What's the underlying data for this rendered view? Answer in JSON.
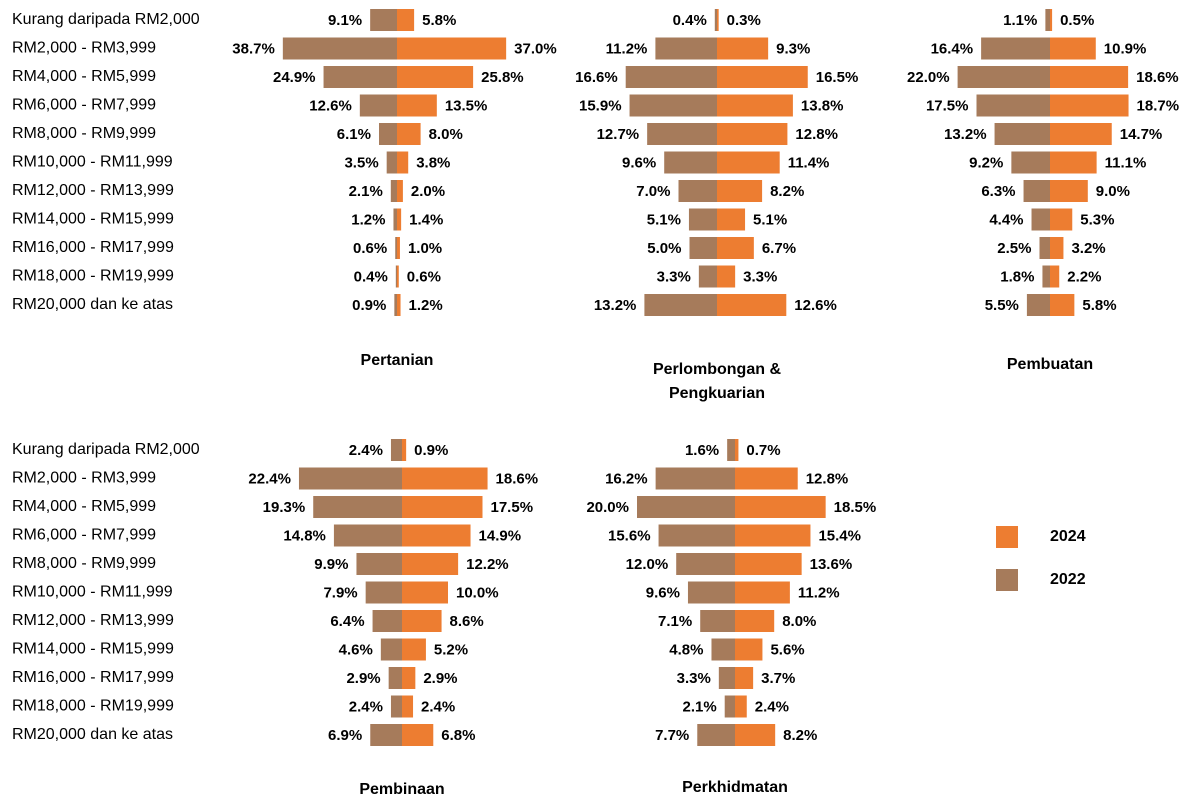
{
  "chart_data": [
    {
      "type": "bar",
      "title": "Pertanian",
      "categories": [
        "Kurang daripada RM2,000",
        "RM2,000 - RM3,999",
        "RM4,000 - RM5,999",
        "RM6,000 - RM7,999",
        "RM8,000 - RM9,999",
        "RM10,000 - RM11,999",
        "RM12,000 - RM13,999",
        "RM14,000 - RM15,999",
        "RM16,000 - RM17,999",
        "RM18,000 - RM19,999",
        "RM20,000 dan ke atas"
      ],
      "xlim": [
        0,
        40
      ],
      "series": [
        {
          "name": "2024",
          "color": "#ED7D31",
          "values": [
            5.8,
            37.0,
            25.8,
            13.5,
            8.0,
            3.8,
            2.0,
            1.4,
            1.0,
            0.6,
            1.2
          ],
          "value_labels": [
            "5.8%",
            "37.0%",
            "25.8%",
            "13.5%",
            "8.0%",
            "3.8%",
            "2.0%",
            "1.4%",
            "1.0%",
            "0.6%",
            "1.2%"
          ]
        },
        {
          "name": "2022",
          "color": "#A67B5B",
          "values": [
            9.1,
            38.7,
            24.9,
            12.6,
            6.1,
            3.5,
            2.1,
            1.2,
            0.6,
            0.4,
            0.9
          ],
          "value_labels": [
            "9.1%",
            "38.7%",
            "24.9%",
            "12.6%",
            "6.1%",
            "3.5%",
            "2.1%",
            "1.2%",
            "0.6%",
            "0.4%",
            "0.9%"
          ]
        }
      ]
    },
    {
      "type": "bar",
      "title": "Perlombongan & Pengkuarian",
      "xlim": [
        0,
        20
      ],
      "series": [
        {
          "color": "#ED7D31",
          "values": [
            0.3,
            9.3,
            16.5,
            13.8,
            12.8,
            11.4,
            8.2,
            5.1,
            6.7,
            3.3,
            12.6
          ],
          "value_labels": [
            "0.3%",
            "9.3%",
            "16.5%",
            "13.8%",
            "12.8%",
            "11.4%",
            "8.2%",
            "5.1%",
            "6.7%",
            "3.3%",
            "12.6%"
          ]
        },
        {
          "color": "#A67B5B",
          "values": [
            0.4,
            11.2,
            16.6,
            15.9,
            12.7,
            9.6,
            7.0,
            5.1,
            5.0,
            3.3,
            13.2
          ],
          "value_labels": [
            "0.4%",
            "11.2%",
            "16.6%",
            "15.9%",
            "12.7%",
            "9.6%",
            "7.0%",
            "5.1%",
            "5.0%",
            "3.3%",
            "13.2%"
          ]
        }
      ]
    },
    {
      "type": "bar",
      "title": "Pembuatan",
      "xlim": [
        0,
        25
      ],
      "series": [
        {
          "color": "#ED7D31",
          "values": [
            0.5,
            10.9,
            18.6,
            18.7,
            14.7,
            11.1,
            9.0,
            5.3,
            3.2,
            2.2,
            5.8
          ],
          "value_labels": [
            "0.5%",
            "10.9%",
            "18.6%",
            "18.7%",
            "14.7%",
            "11.1%",
            "9.0%",
            "5.3%",
            "3.2%",
            "2.2%",
            "5.8%"
          ]
        },
        {
          "color": "#A67B5B",
          "values": [
            1.1,
            16.4,
            22.0,
            17.5,
            13.2,
            9.2,
            6.3,
            4.4,
            2.5,
            1.8,
            5.5
          ],
          "value_labels": [
            "1.1%",
            "16.4%",
            "22.0%",
            "17.5%",
            "13.2%",
            "9.2%",
            "6.3%",
            "4.4%",
            "2.5%",
            "1.8%",
            "5.5%"
          ]
        }
      ]
    },
    {
      "type": "bar",
      "title": "Pembinaan",
      "categories": [
        "Kurang daripada RM2,000",
        "RM2,000 - RM3,999",
        "RM4,000 - RM5,999",
        "RM6,000 - RM7,999",
        "RM8,000 - RM9,999",
        "RM10,000 - RM11,999",
        "RM12,000 - RM13,999",
        "RM14,000 - RM15,999",
        "RM16,000 - RM17,999",
        "RM18,000 - RM19,999",
        "RM20,000 dan ke atas"
      ],
      "xlim": [
        0,
        25
      ],
      "series": [
        {
          "color": "#ED7D31",
          "values": [
            0.9,
            18.6,
            17.5,
            14.9,
            12.2,
            10.0,
            8.6,
            5.2,
            2.9,
            2.4,
            6.8
          ],
          "value_labels": [
            "0.9%",
            "18.6%",
            "17.5%",
            "14.9%",
            "12.2%",
            "10.0%",
            "8.6%",
            "5.2%",
            "2.9%",
            "2.4%",
            "6.8%"
          ]
        },
        {
          "color": "#A67B5B",
          "values": [
            2.4,
            22.4,
            19.3,
            14.8,
            9.9,
            7.9,
            6.4,
            4.6,
            2.9,
            2.4,
            6.9
          ],
          "value_labels": [
            "2.4%",
            "22.4%",
            "19.3%",
            "14.8%",
            "9.9%",
            "7.9%",
            "6.4%",
            "4.6%",
            "2.9%",
            "2.4%",
            "6.9%"
          ]
        }
      ]
    },
    {
      "type": "bar",
      "title": "Perkhidmatan",
      "xlim": [
        0,
        20
      ],
      "series": [
        {
          "color": "#ED7D31",
          "values": [
            0.7,
            12.8,
            18.5,
            15.4,
            13.6,
            11.2,
            8.0,
            5.6,
            3.7,
            2.4,
            8.2
          ],
          "value_labels": [
            "0.7%",
            "12.8%",
            "18.5%",
            "15.4%",
            "13.6%",
            "11.2%",
            "8.0%",
            "5.6%",
            "3.7%",
            "2.4%",
            "8.2%"
          ]
        },
        {
          "color": "#A67B5B",
          "values": [
            1.6,
            16.2,
            20.0,
            15.6,
            12.0,
            9.6,
            7.1,
            4.8,
            3.3,
            2.1,
            7.7
          ],
          "value_labels": [
            "1.6%",
            "16.2%",
            "20.0%",
            "15.6%",
            "12.0%",
            "9.6%",
            "7.1%",
            "4.8%",
            "3.3%",
            "2.1%",
            "7.7%"
          ]
        }
      ]
    }
  ]
}
